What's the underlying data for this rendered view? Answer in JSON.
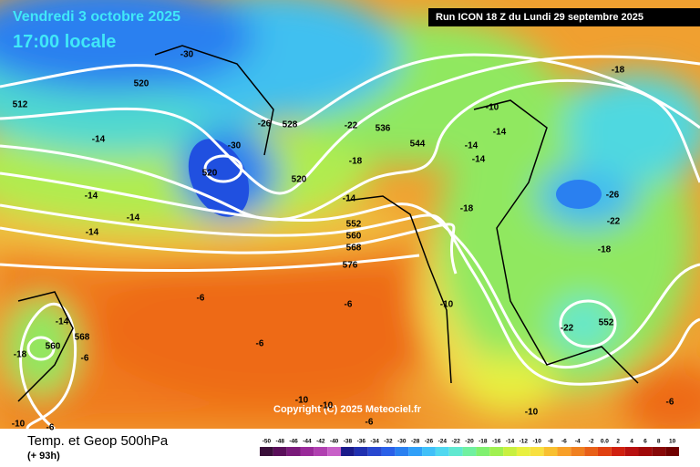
{
  "header": {
    "date": "Vendredi 3 octobre 2025",
    "time": "17:00 locale",
    "run": "Run ICON 18 Z du Lundi 29 septembre 2025"
  },
  "footer": {
    "title": "Temp. et Geop 500hPa",
    "lead": "(+ 93h)",
    "copyright": "Copyright (C) 2025 Meteociel.fr"
  },
  "scale": {
    "labels": [
      "-50",
      "-48",
      "-46",
      "-44",
      "-42",
      "-40",
      "-38",
      "-36",
      "-34",
      "-32",
      "-30",
      "-28",
      "-26",
      "-24",
      "-22",
      "-20",
      "-18",
      "-16",
      "-14",
      "-12",
      "-10",
      "-8",
      "-6",
      "-4",
      "-2",
      "0.0",
      "2",
      "4",
      "6",
      "8",
      "10"
    ],
    "colors": [
      "#3a0f3a",
      "#5a0f5a",
      "#7a1a7a",
      "#9a2a9a",
      "#b040b0",
      "#c860c8",
      "#1a1a8a",
      "#2030b0",
      "#2848d0",
      "#2a60e8",
      "#2a80f0",
      "#30a0f8",
      "#40c0f8",
      "#50d8f0",
      "#60e8d0",
      "#70f0a0",
      "#80f070",
      "#a0f050",
      "#c8f040",
      "#e8f040",
      "#f8e040",
      "#f8c030",
      "#f8a028",
      "#f08020",
      "#e86018",
      "#e04010",
      "#d02010",
      "#b81010",
      "#a00808",
      "#880808",
      "#700000"
    ]
  },
  "map_labels": [
    "-30",
    "520",
    "512",
    "-26",
    "528",
    "-22",
    "536",
    "544",
    "-18",
    "-30",
    "520",
    "-18",
    "520",
    "-14",
    "-14",
    "-14",
    "-14",
    "-14",
    "552",
    "560",
    "568",
    "576",
    "-18",
    "-26",
    "-22",
    "-18",
    "-6",
    "-6",
    "-10",
    "-14",
    "568",
    "560",
    "-18",
    "-6",
    "-22",
    "552",
    "-6",
    "-10",
    "-10",
    "-10",
    "-6",
    "-10",
    "-6",
    "-6",
    "-14",
    "-14",
    "-14",
    "-10"
  ]
}
